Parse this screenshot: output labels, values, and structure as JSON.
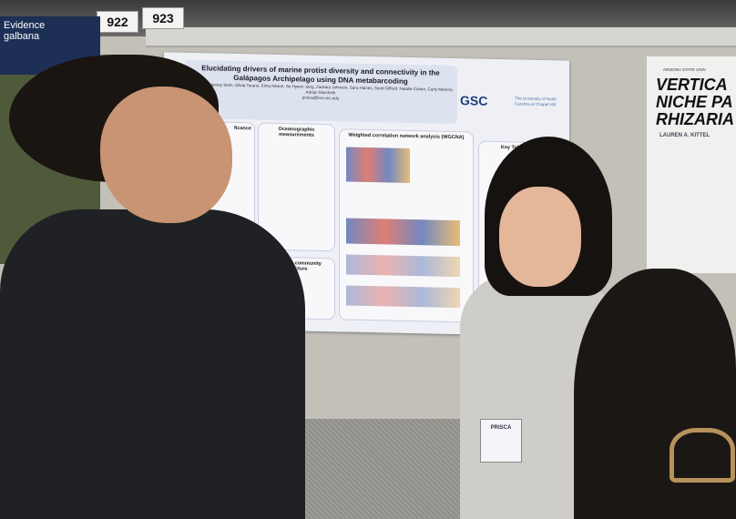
{
  "booth_signs": [
    "922",
    "923"
  ],
  "left_poster": {
    "header_lines": [
      "Evidence",
      "galbana"
    ]
  },
  "main_poster": {
    "title": "Elucidating drivers of marine protist diversity and connectivity in the Galápagos Archipelago using DNA metabarcoding",
    "authors": "Prisca Lim, Harvey Seim, Olivia Torano, Erika Neave, Se Hyeon Jang, Zackary Johnson, Sara Haines, Scott Gifford, Natalie Cohen, Carly Moreno, Adrian Marchetti",
    "email": "prisca@live.unc.edu",
    "logos": [
      "GSC",
      "The University of North Carolina at Chapel Hill"
    ],
    "sections": [
      "ficance",
      "Oceanographic measurements",
      "Weighted correlation network analysis (WGCNA)",
      "Key Takeaways",
      "Protistan community structure"
    ]
  },
  "right_poster": {
    "institution": "ARIZONA STATE UNIV",
    "title_lines": [
      "VERTICA",
      "NICHE PA",
      "RHIZARIA"
    ],
    "author": "LAUREN A. KITTEL"
  },
  "name_badge": "PRISCA"
}
